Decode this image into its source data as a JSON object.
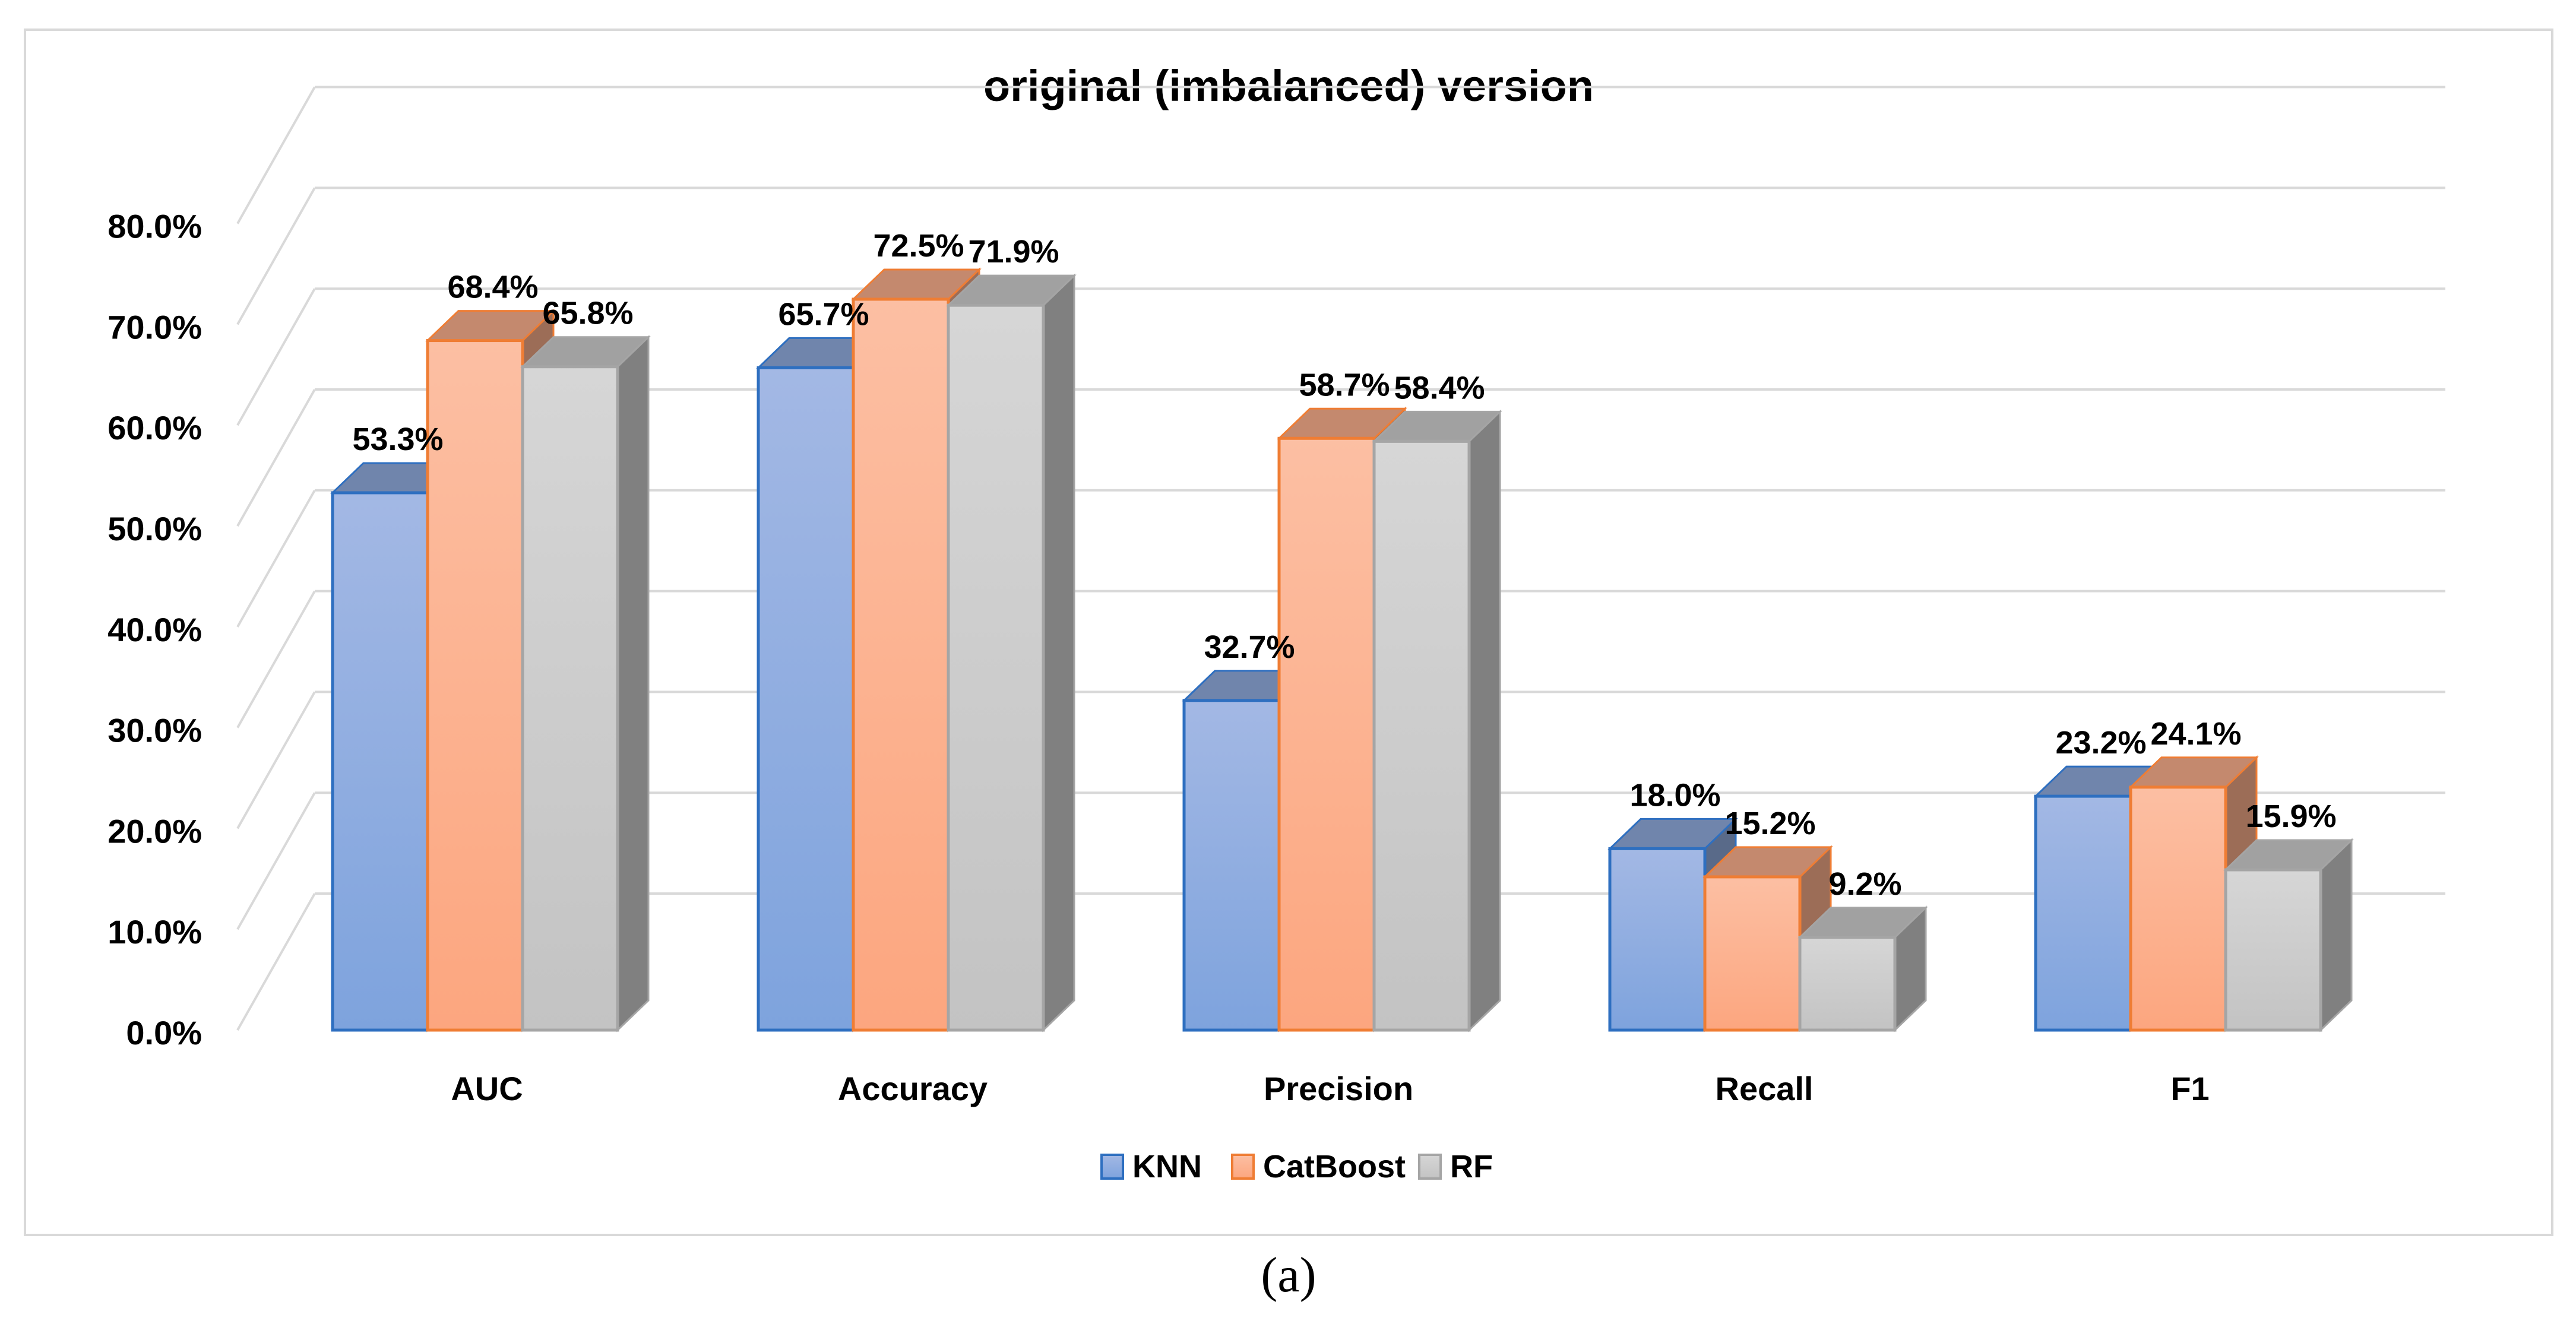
{
  "chart_data": {
    "type": "bar",
    "style": "3d-clustered-column",
    "title": "original (imbalanced) version",
    "caption": "(a)",
    "categories": [
      "AUC",
      "Accuracy",
      "Precision",
      "Recall",
      "F1"
    ],
    "series": [
      {
        "name": "KNN",
        "values": [
          53.3,
          65.7,
          32.7,
          18.0,
          23.2
        ],
        "labels": [
          "53.3%",
          "65.7%",
          "32.7%",
          "18.0%",
          "23.2%"
        ],
        "color": "#8fabdd",
        "color_top": "#a3b8e4",
        "color_bottom": "#7ea3dd",
        "edge": "#2e6fc0"
      },
      {
        "name": "CatBoost",
        "values": [
          68.4,
          72.5,
          58.7,
          15.2,
          24.1
        ],
        "labels": [
          "68.4%",
          "72.5%",
          "58.7%",
          "15.2%",
          "24.1%"
        ],
        "color": "#fbb08d",
        "color_top": "#fcbfa3",
        "color_bottom": "#fca67f",
        "edge": "#ef7d34"
      },
      {
        "name": "RF",
        "values": [
          65.8,
          71.9,
          58.4,
          9.2,
          15.9
        ],
        "labels": [
          "65.8%",
          "71.9%",
          "58.4%",
          "9.2%",
          "15.9%"
        ],
        "color": "#cfcfcf",
        "color_top": "#d6d6d6",
        "color_bottom": "#c3c3c3",
        "edge": "#a5a5a5"
      }
    ],
    "y_ticks": [
      "0.0%",
      "10.0%",
      "20.0%",
      "30.0%",
      "40.0%",
      "50.0%",
      "60.0%",
      "70.0%",
      "80.0%"
    ],
    "ylim": [
      0,
      80
    ],
    "grid": true,
    "legend_position": "bottom",
    "colors": {
      "grid": "#d9d9d9",
      "frame": "#d9d9d9",
      "text": "#000000",
      "background": "#ffffff"
    }
  }
}
